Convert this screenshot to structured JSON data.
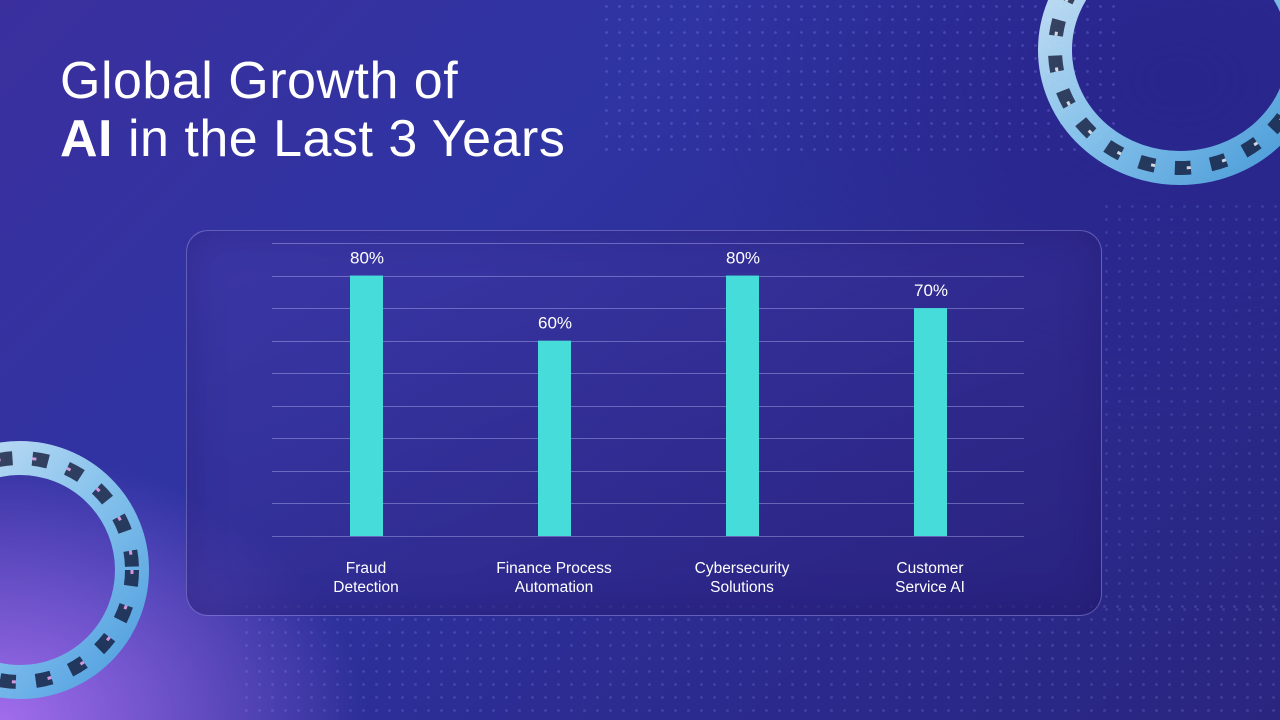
{
  "slide": {
    "title_line1": "Global Growth of",
    "title_line2_bold": "AI",
    "title_line2_rest": " in the Last 3 Years"
  },
  "colors": {
    "bar": "#45dcd9",
    "grid": "rgba(200,200,255,0.38)",
    "text": "#ffffff"
  },
  "chart_data": {
    "type": "bar",
    "title": "Global Growth of AI in the Last 3 Years",
    "categories": [
      [
        "Fraud",
        "Detection"
      ],
      [
        "Finance Process",
        "Automation"
      ],
      [
        "Cybersecurity",
        "Solutions"
      ],
      [
        "Customer",
        "Service AI"
      ]
    ],
    "values": [
      80,
      60,
      80,
      70
    ],
    "data_labels": [
      "80%",
      "60%",
      "80%",
      "70%"
    ],
    "ylim": [
      0,
      90
    ],
    "grid_step": 10,
    "grid": true,
    "xlabel": "",
    "ylabel": ""
  }
}
